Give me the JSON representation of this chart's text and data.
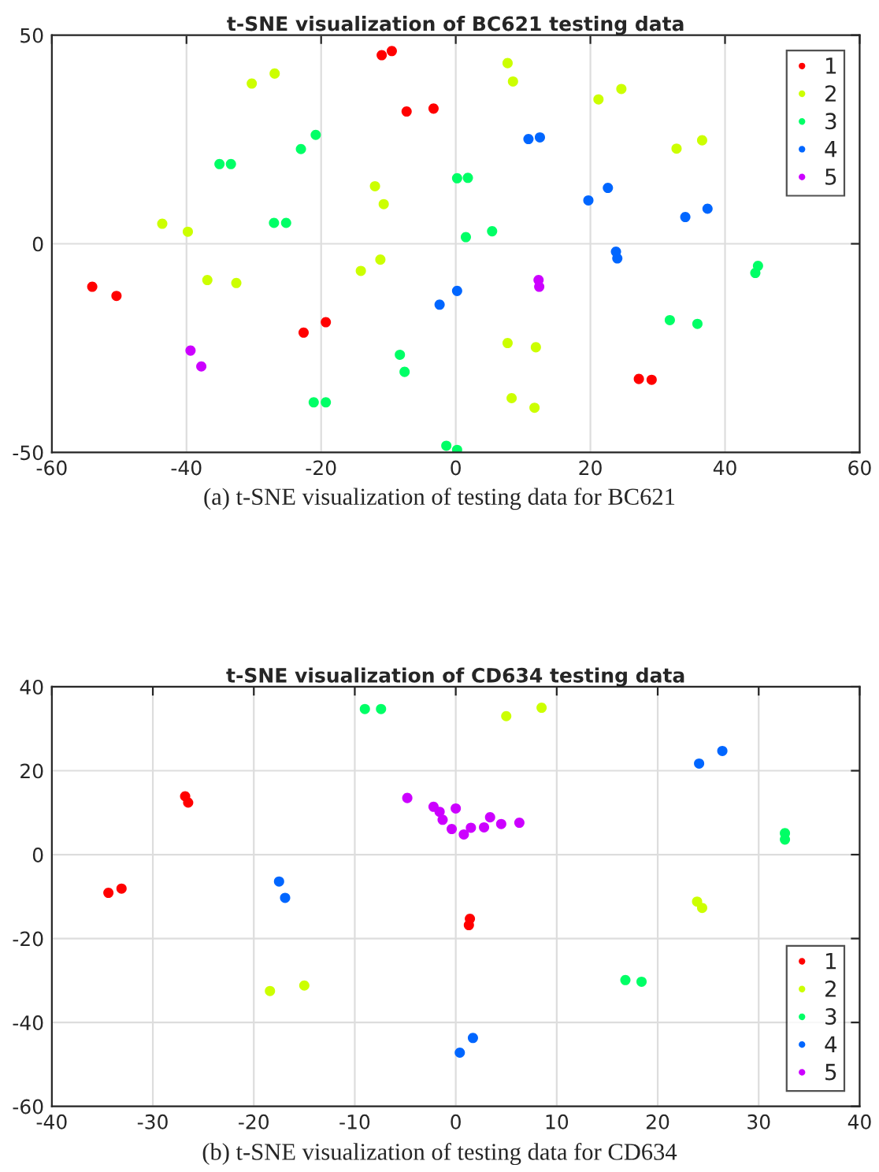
{
  "chart_data": [
    {
      "type": "scatter",
      "title": "t-SNE visualization of BC621 testing data",
      "xlim": [
        -60,
        60
      ],
      "xticks": [
        -60,
        -40,
        -20,
        0,
        20,
        40,
        60
      ],
      "ylim": [
        -50,
        50
      ],
      "yticks": [
        -50,
        0,
        50
      ],
      "grid": true,
      "legend": "top right",
      "marker": "circle",
      "annotations": [
        "(a) t-SNE visualization of testing data for BC621"
      ],
      "series": [
        {
          "name": "1",
          "color": "#ff0000",
          "x": [
            -9.5,
            -11,
            -7.3,
            -3.3,
            -54,
            -50.4,
            -22.6,
            -19.3,
            27.2,
            29.1
          ],
          "values": [
            46.2,
            45.2,
            31.7,
            32.4,
            -10.3,
            -12.5,
            -21.3,
            -18.8,
            -32.4,
            -32.6
          ]
        },
        {
          "name": "2",
          "color": "#ccff00",
          "x": [
            -30.3,
            -26.9,
            7.7,
            8.5,
            21.2,
            24.6,
            32.8,
            36.6,
            -12,
            -10.7,
            -43.6,
            -39.8,
            -36.9,
            -32.6,
            -14.1,
            -11.2,
            7.7,
            11.9,
            8.3,
            11.7
          ],
          "values": [
            38.4,
            40.8,
            43.3,
            38.9,
            34.6,
            37.1,
            22.8,
            24.8,
            13.8,
            9.5,
            4.8,
            2.9,
            -8.7,
            -9.4,
            -6.5,
            -3.8,
            -23.8,
            -24.8,
            -37,
            -39.3
          ]
        },
        {
          "name": "3",
          "color": "#00ff66",
          "x": [
            -23,
            -20.8,
            -35.1,
            -33.4,
            1.8,
            0.2,
            -25.2,
            -27,
            1.5,
            5.4,
            44.5,
            44.9,
            31.8,
            35.9,
            -8.3,
            -7.6,
            -21.1,
            -19.3,
            -1.4,
            0.2
          ],
          "values": [
            22.7,
            26.1,
            19.1,
            19.1,
            15.8,
            15.7,
            5,
            5,
            1.6,
            3,
            -7,
            -5.3,
            -18.3,
            -19.2,
            -26.6,
            -30.7,
            -38,
            -38,
            -48.4,
            -49.4
          ]
        },
        {
          "name": "4",
          "color": "#0066ff",
          "x": [
            10.8,
            12.5,
            19.7,
            22.6,
            34.1,
            37.4,
            24,
            23.8,
            -2.4,
            0.2
          ],
          "values": [
            25.1,
            25.5,
            10.4,
            13.4,
            6.4,
            8.4,
            -3.5,
            -1.9,
            -14.6,
            -11.3
          ]
        },
        {
          "name": "5",
          "color": "#cc00ff",
          "x": [
            12.4,
            12.3,
            -39.4,
            -37.8
          ],
          "values": [
            -10.3,
            -8.7,
            -25.6,
            -29.4
          ]
        }
      ]
    },
    {
      "type": "scatter",
      "title": "t-SNE visualization of CD634 testing data",
      "xlim": [
        -40,
        40
      ],
      "xticks": [
        -40,
        -30,
        -20,
        -10,
        0,
        10,
        20,
        30,
        40
      ],
      "ylim": [
        -60,
        40
      ],
      "yticks": [
        -60,
        -40,
        -20,
        0,
        20,
        40
      ],
      "grid": true,
      "legend": "bottom right",
      "marker": "circle",
      "annotations": [
        "(b) t-SNE visualization of testing data for CD634"
      ],
      "series": [
        {
          "name": "1",
          "color": "#ff0000",
          "x": [
            -26.5,
            -26.8,
            -33.1,
            -34.4,
            1.3,
            1.4
          ],
          "values": [
            12.4,
            13.9,
            -8.1,
            -9.1,
            -16.8,
            -15.3
          ]
        },
        {
          "name": "2",
          "color": "#ccff00",
          "x": [
            5,
            8.5,
            -18.4,
            -15,
            24.4,
            23.9
          ],
          "values": [
            33,
            35,
            -32.5,
            -31.2,
            -12.7,
            -11.2
          ]
        },
        {
          "name": "3",
          "color": "#00ff66",
          "x": [
            -7.4,
            -9,
            32.6,
            32.6,
            18.4,
            16.8
          ],
          "values": [
            34.7,
            34.7,
            5.1,
            3.6,
            -30.3,
            -29.9
          ]
        },
        {
          "name": "4",
          "color": "#0066ff",
          "x": [
            24.1,
            26.4,
            -17.5,
            -16.9,
            0.4,
            1.7
          ],
          "values": [
            21.7,
            24.7,
            -6.4,
            -10.3,
            -47.2,
            -43.7
          ]
        },
        {
          "name": "5",
          "color": "#cc00ff",
          "x": [
            -4.8,
            -2.2,
            -1.6,
            -1.3,
            0,
            3.4,
            6.3,
            -0.4,
            0.8,
            1.5,
            2.8,
            4.5
          ],
          "values": [
            13.5,
            11.4,
            10.2,
            8.3,
            11,
            8.9,
            7.6,
            6.1,
            4.8,
            6.4,
            6.5,
            7.3
          ]
        }
      ]
    }
  ]
}
